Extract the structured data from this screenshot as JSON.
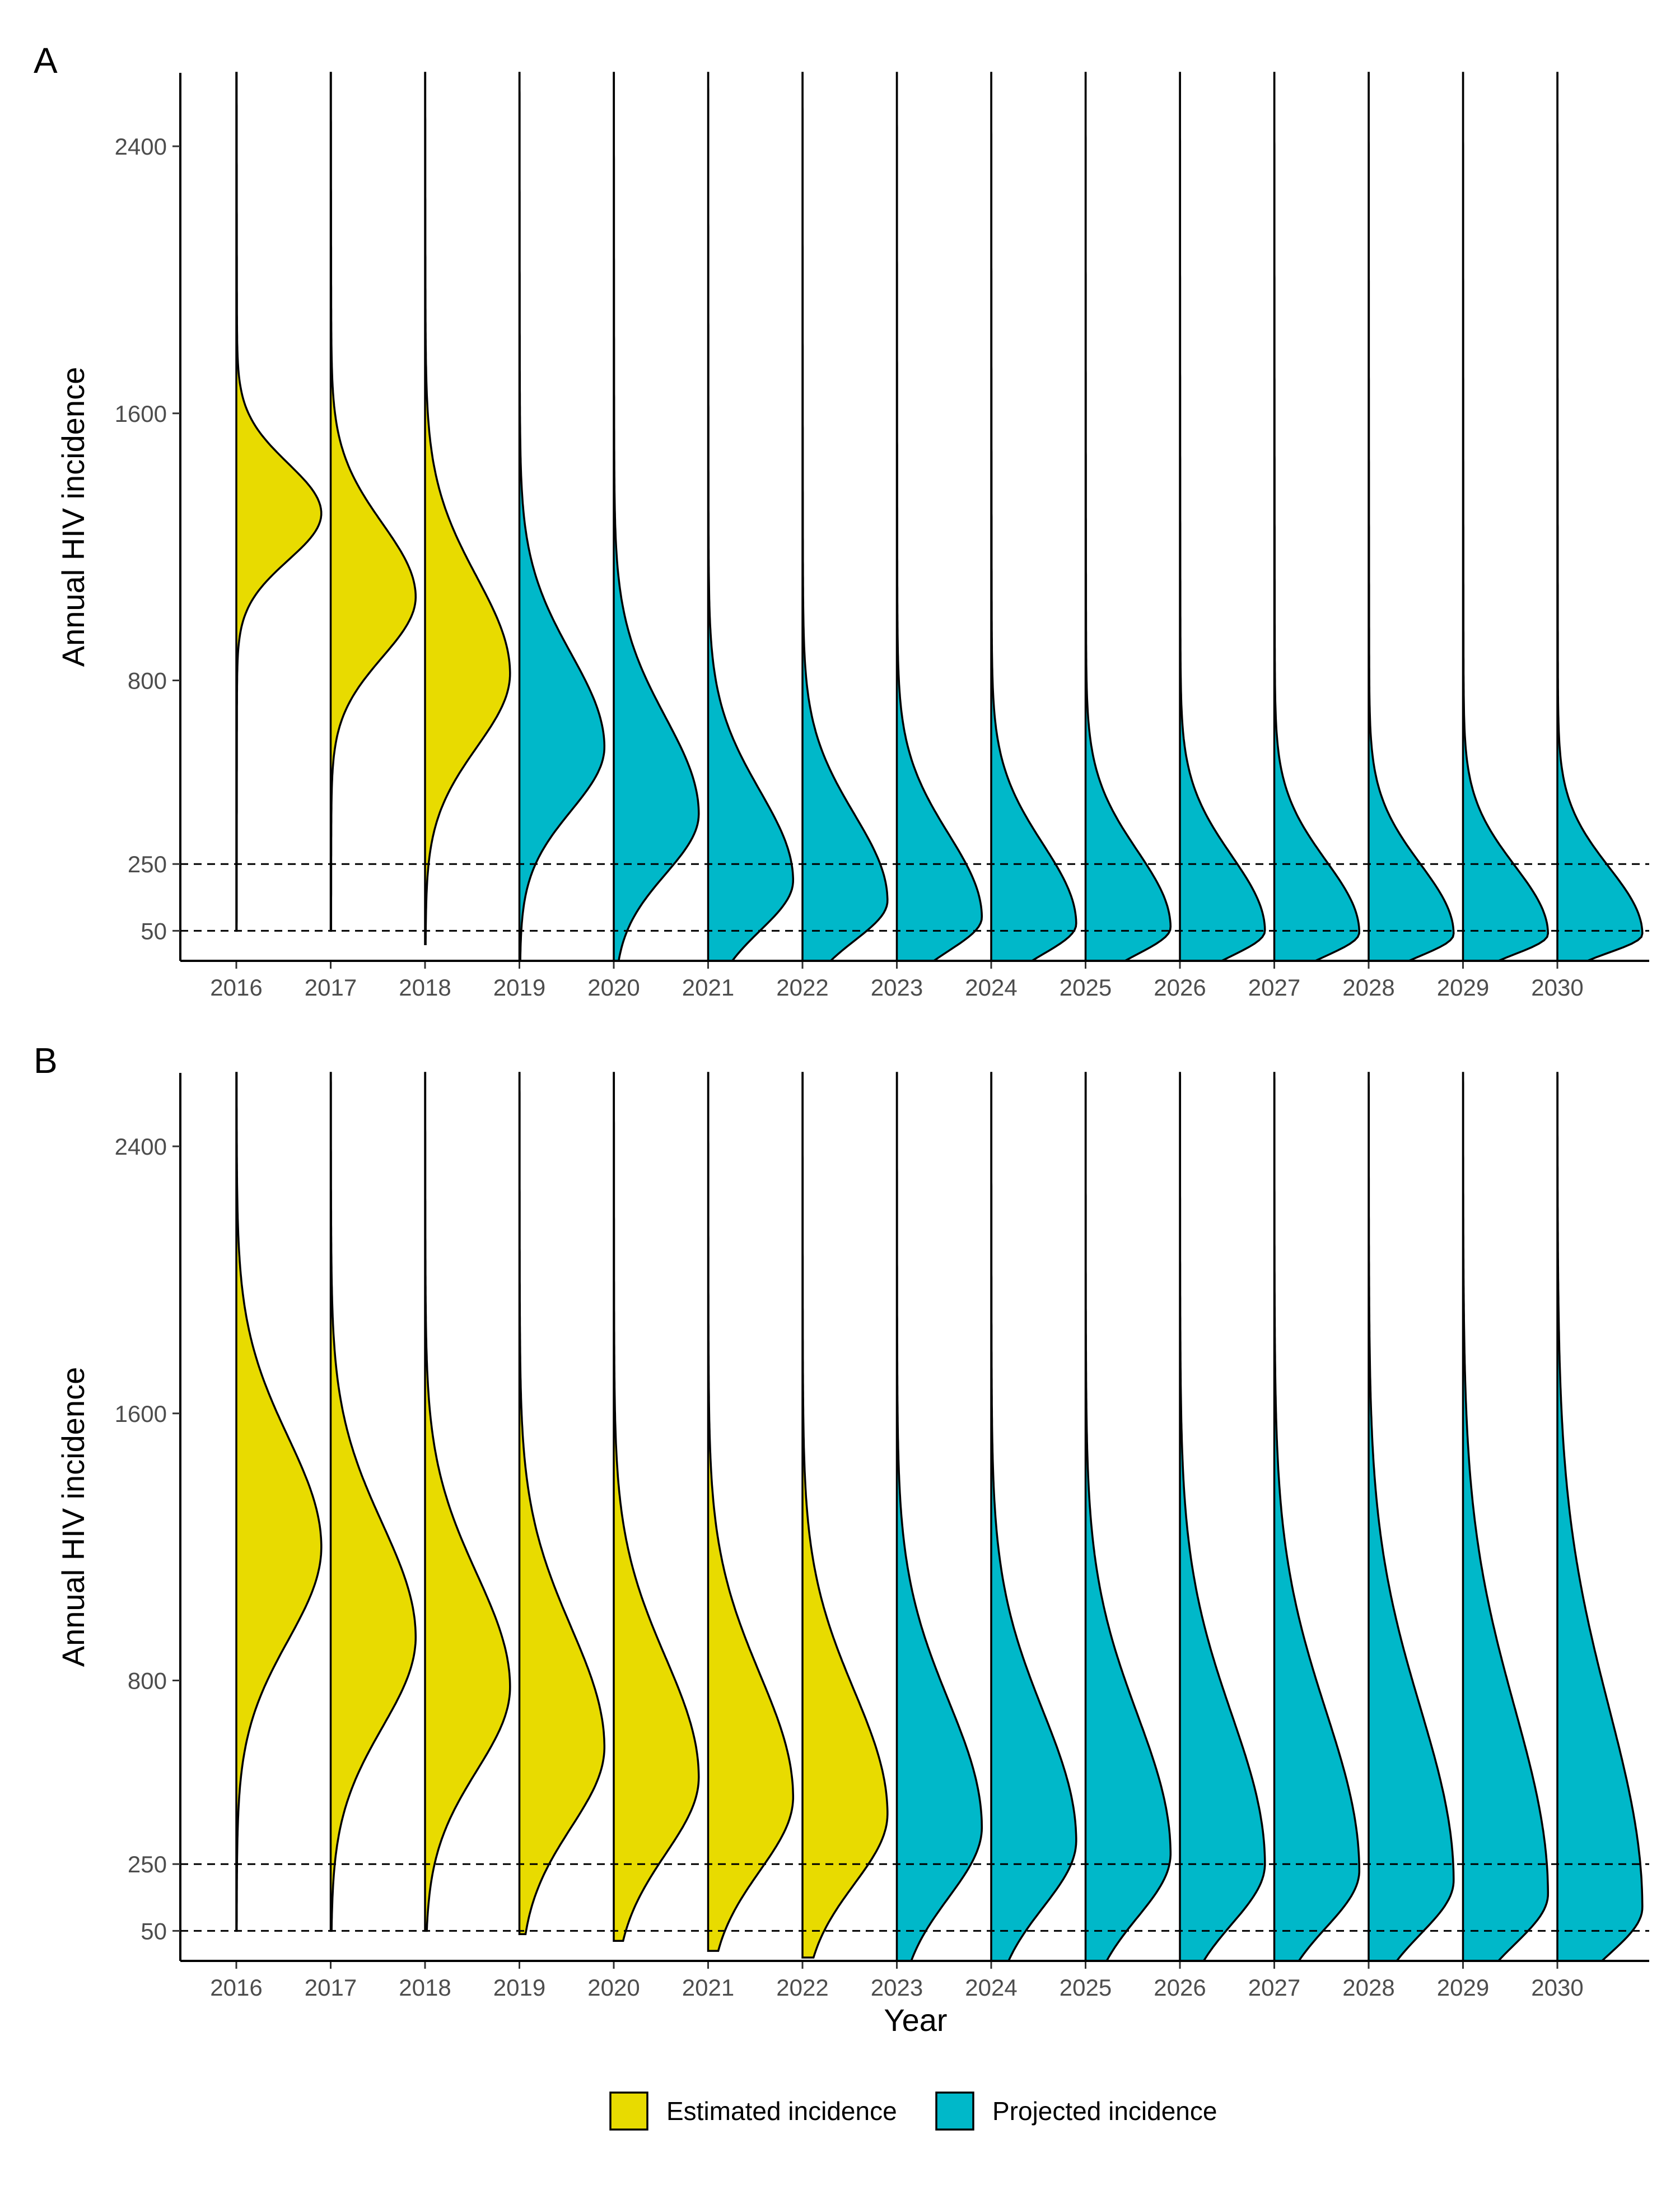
{
  "colors": {
    "estimated": "#E8DB00",
    "projected": "#00B8C9"
  },
  "legend": {
    "estimated_label": "Estimated incidence",
    "projected_label": "Projected incidence"
  },
  "x_title": "Year",
  "chart_data": [
    {
      "panel": "A",
      "type": "violin (half-density)",
      "xlabel": "",
      "ylabel": "Annual HIV incidence",
      "ylim": [
        -40,
        2620
      ],
      "yticks": [
        50,
        250,
        800,
        1600,
        2400
      ],
      "reference_lines": [
        50,
        250
      ],
      "years": [
        2016,
        2017,
        2018,
        2019,
        2020,
        2021,
        2022,
        2023,
        2024,
        2025,
        2026,
        2027,
        2028,
        2029,
        2030
      ],
      "series": [
        {
          "year": 2016,
          "kind": "estimated",
          "mode": 1300,
          "sd_low": 140,
          "sd_high": 150,
          "ymin": 50,
          "ymax": 2620
        },
        {
          "year": 2017,
          "kind": "estimated",
          "mode": 1050,
          "sd_low": 180,
          "sd_high": 220,
          "ymin": 50,
          "ymax": 2620
        },
        {
          "year": 2018,
          "kind": "estimated",
          "mode": 820,
          "sd_low": 220,
          "sd_high": 290,
          "ymin": 10,
          "ymax": 2620
        },
        {
          "year": 2019,
          "kind": "projected",
          "mode": 600,
          "sd_low": 190,
          "sd_high": 280,
          "ymin": -40,
          "ymax": 2620
        },
        {
          "year": 2020,
          "kind": "projected",
          "mode": 400,
          "sd_low": 180,
          "sd_high": 290,
          "ymin": -40,
          "ymax": 2620
        },
        {
          "year": 2021,
          "kind": "projected",
          "mode": 200,
          "sd_low": 150,
          "sd_high": 270,
          "ymin": -40,
          "ymax": 2620
        },
        {
          "year": 2022,
          "kind": "projected",
          "mode": 140,
          "sd_low": 120,
          "sd_high": 260,
          "ymin": -40,
          "ymax": 2620
        },
        {
          "year": 2023,
          "kind": "projected",
          "mode": 90,
          "sd_low": 100,
          "sd_high": 250,
          "ymin": -40,
          "ymax": 2620
        },
        {
          "year": 2024,
          "kind": "projected",
          "mode": 70,
          "sd_low": 90,
          "sd_high": 240,
          "ymin": -40,
          "ymax": 2620
        },
        {
          "year": 2025,
          "kind": "projected",
          "mode": 60,
          "sd_low": 80,
          "sd_high": 230,
          "ymin": -40,
          "ymax": 2620
        },
        {
          "year": 2026,
          "kind": "projected",
          "mode": 50,
          "sd_low": 75,
          "sd_high": 225,
          "ymin": -40,
          "ymax": 2620
        },
        {
          "year": 2027,
          "kind": "projected",
          "mode": 45,
          "sd_low": 70,
          "sd_high": 215,
          "ymin": -40,
          "ymax": 2620
        },
        {
          "year": 2028,
          "kind": "projected",
          "mode": 40,
          "sd_low": 65,
          "sd_high": 210,
          "ymin": -40,
          "ymax": 2620
        },
        {
          "year": 2029,
          "kind": "projected",
          "mode": 40,
          "sd_low": 60,
          "sd_high": 205,
          "ymin": -40,
          "ymax": 2620
        },
        {
          "year": 2030,
          "kind": "projected",
          "mode": 40,
          "sd_low": 55,
          "sd_high": 200,
          "ymin": -40,
          "ymax": 2620
        }
      ]
    },
    {
      "panel": "B",
      "type": "violin (half-density)",
      "xlabel": "Year",
      "ylabel": "Annual HIV incidence",
      "ylim": [
        -40,
        2620
      ],
      "yticks": [
        50,
        250,
        800,
        1600,
        2400
      ],
      "reference_lines": [
        50,
        250
      ],
      "years": [
        2016,
        2017,
        2018,
        2019,
        2020,
        2021,
        2022,
        2023,
        2024,
        2025,
        2026,
        2027,
        2028,
        2029,
        2030
      ],
      "series": [
        {
          "year": 2016,
          "kind": "estimated",
          "mode": 1200,
          "sd_low": 280,
          "sd_high": 330,
          "ymin": 50,
          "ymax": 2620
        },
        {
          "year": 2017,
          "kind": "estimated",
          "mode": 930,
          "sd_low": 270,
          "sd_high": 340,
          "ymin": 50,
          "ymax": 2620
        },
        {
          "year": 2018,
          "kind": "estimated",
          "mode": 780,
          "sd_low": 250,
          "sd_high": 340,
          "ymin": 50,
          "ymax": 2620
        },
        {
          "year": 2019,
          "kind": "estimated",
          "mode": 600,
          "sd_low": 240,
          "sd_high": 360,
          "ymin": 40,
          "ymax": 2620
        },
        {
          "year": 2020,
          "kind": "estimated",
          "mode": 510,
          "sd_low": 230,
          "sd_high": 360,
          "ymin": 20,
          "ymax": 2620
        },
        {
          "year": 2021,
          "kind": "estimated",
          "mode": 450,
          "sd_low": 220,
          "sd_high": 370,
          "ymin": -10,
          "ymax": 2620
        },
        {
          "year": 2022,
          "kind": "estimated",
          "mode": 400,
          "sd_low": 210,
          "sd_high": 370,
          "ymin": -30,
          "ymax": 2620
        },
        {
          "year": 2023,
          "kind": "projected",
          "mode": 360,
          "sd_low": 210,
          "sd_high": 380,
          "ymin": -40,
          "ymax": 2620
        },
        {
          "year": 2024,
          "kind": "projected",
          "mode": 320,
          "sd_low": 200,
          "sd_high": 390,
          "ymin": -40,
          "ymax": 2620
        },
        {
          "year": 2025,
          "kind": "projected",
          "mode": 280,
          "sd_low": 190,
          "sd_high": 420,
          "ymin": -40,
          "ymax": 2620
        },
        {
          "year": 2026,
          "kind": "projected",
          "mode": 250,
          "sd_low": 180,
          "sd_high": 450,
          "ymin": -40,
          "ymax": 2620
        },
        {
          "year": 2027,
          "kind": "projected",
          "mode": 230,
          "sd_low": 170,
          "sd_high": 480,
          "ymin": -40,
          "ymax": 2620
        },
        {
          "year": 2028,
          "kind": "projected",
          "mode": 200,
          "sd_low": 160,
          "sd_high": 520,
          "ymin": -40,
          "ymax": 2620
        },
        {
          "year": 2029,
          "kind": "projected",
          "mode": 160,
          "sd_low": 150,
          "sd_high": 560,
          "ymin": -40,
          "ymax": 2620
        },
        {
          "year": 2030,
          "kind": "projected",
          "mode": 120,
          "sd_low": 140,
          "sd_high": 600,
          "ymin": -40,
          "ymax": 2620
        }
      ]
    }
  ]
}
